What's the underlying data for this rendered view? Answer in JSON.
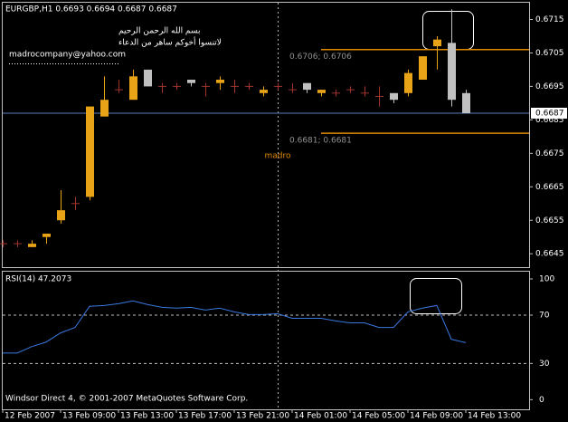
{
  "chart_data": [
    {
      "type": "candlestick",
      "title": "EURGBP,H1  0.6693 0.6694 0.6687 0.6687",
      "open": [
        0.6648,
        0.6648,
        0.6647,
        0.665,
        0.6655,
        0.666,
        0.6662,
        0.6686,
        0.6694,
        0.6691,
        0.67,
        0.6695,
        0.6695,
        0.6697,
        0.6695,
        0.6696,
        0.6695,
        0.6695,
        0.6693,
        0.6695,
        0.6694,
        0.6696,
        0.6693,
        0.6693,
        0.6694,
        0.6693,
        0.6692,
        0.6693,
        0.6693,
        0.6697,
        0.6707,
        0.6708,
        0.6693
      ],
      "high": [
        0.6649,
        0.6649,
        0.6649,
        0.6651,
        0.6664,
        0.6662,
        0.6689,
        0.6698,
        0.6697,
        0.67,
        0.67,
        0.6696,
        0.6696,
        0.6697,
        0.6696,
        0.6698,
        0.6697,
        0.6696,
        0.6695,
        0.6696,
        0.6696,
        0.6696,
        0.6694,
        0.6694,
        0.6695,
        0.6695,
        0.6695,
        0.6693,
        0.67,
        0.6704,
        0.671,
        0.6718,
        0.6694
      ],
      "low": [
        0.6647,
        0.6647,
        0.6647,
        0.6648,
        0.6654,
        0.6658,
        0.6661,
        0.6686,
        0.6693,
        0.6691,
        0.6695,
        0.6693,
        0.6694,
        0.6695,
        0.6692,
        0.6694,
        0.6693,
        0.6694,
        0.6692,
        0.6694,
        0.6693,
        0.6693,
        0.6692,
        0.6692,
        0.6693,
        0.6692,
        0.6689,
        0.669,
        0.6692,
        0.6697,
        0.67,
        0.6689,
        0.6687
      ],
      "close": [
        0.6648,
        0.6648,
        0.6648,
        0.6651,
        0.6658,
        0.666,
        0.6689,
        0.6691,
        0.6694,
        0.6698,
        0.6695,
        0.6695,
        0.6695,
        0.6696,
        0.6695,
        0.6697,
        0.6695,
        0.6695,
        0.6694,
        0.6695,
        0.6694,
        0.6694,
        0.6694,
        0.6693,
        0.6694,
        0.6693,
        0.6692,
        0.6691,
        0.6699,
        0.6704,
        0.6709,
        0.6691,
        0.6687
      ],
      "ylim": [
        0.6641,
        0.672
      ],
      "yticks": [
        0.6715,
        0.6705,
        0.6695,
        0.6685,
        0.6675,
        0.6665,
        0.6655,
        0.6645
      ],
      "up_color": "#e8a317",
      "down_color": "#c0c0c0",
      "doji_color": "#a0342c",
      "levels": [
        {
          "value": 0.6706,
          "label": "0.6706; 0.6706",
          "color": "#e08a00"
        },
        {
          "value": 0.6681,
          "label": "0.6681; 0.6681",
          "color": "#e08a00"
        }
      ],
      "current_price": 0.6687,
      "current_price_color": "#5a7fc0",
      "annotation": "madro"
    },
    {
      "type": "line",
      "title": "RSI(14) 47.2073",
      "categories": [
        "12 Feb 2007",
        null,
        null,
        null,
        "13 Feb 09:00",
        null,
        null,
        null,
        "13 Feb 13:00",
        null,
        null,
        null,
        "13 Feb 17:00",
        null,
        null,
        null,
        "13 Feb 21:00",
        null,
        null,
        null,
        "14 Feb 01:00",
        null,
        null,
        null,
        "14 Feb 05:00",
        null,
        null,
        null,
        "14 Feb 09:00",
        null,
        null,
        null,
        "14 Feb 13:00"
      ],
      "values": [
        38.6,
        38.6,
        43.9,
        47.7,
        55.3,
        59.8,
        77.3,
        78,
        79.5,
        81.8,
        78.8,
        76.5,
        75.8,
        76.5,
        74.2,
        75.8,
        72.7,
        70.5,
        70.5,
        71.2,
        67.4,
        67.4,
        67.4,
        65.2,
        63.6,
        63.6,
        59.8,
        59.8,
        72.7,
        75.8,
        78,
        50,
        47.2
      ],
      "color": "#3a78e0",
      "ylim": [
        -8,
        106
      ],
      "yticks": [
        100,
        70,
        30,
        0
      ],
      "levels": [
        70,
        30
      ]
    }
  ],
  "notes": [
    "بسم الله الرحمن الرحيم",
    "لاتنسوا أخوكم ساهر من الدعاء",
    "madrocompany@yahoo.com"
  ],
  "footer": "Windsor Direct 4, © 2001-2007 MetaQuotes Software Corp."
}
